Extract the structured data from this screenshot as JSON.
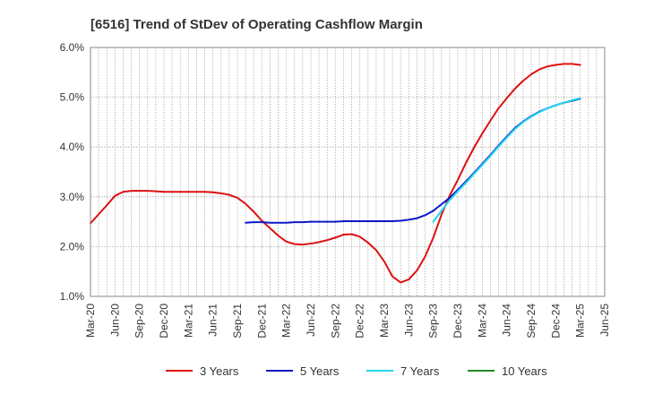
{
  "chart_data": {
    "type": "line",
    "title": "[6516]  Trend of StDev of Operating Cashflow Margin",
    "xlabel": "",
    "ylabel": "",
    "ylim": [
      1.0,
      6.0
    ],
    "y_ticks": [
      "1.0%",
      "2.0%",
      "3.0%",
      "4.0%",
      "5.0%",
      "6.0%"
    ],
    "x_ticks": [
      "Mar-20",
      "Jun-20",
      "Sep-20",
      "Dec-20",
      "Mar-21",
      "Jun-21",
      "Sep-21",
      "Dec-21",
      "Mar-22",
      "Jun-22",
      "Sep-22",
      "Dec-22",
      "Mar-23",
      "Jun-23",
      "Sep-23",
      "Dec-23",
      "Mar-24",
      "Jun-24",
      "Sep-24",
      "Dec-24",
      "Mar-25",
      "Jun-25"
    ],
    "x_start": "2020-03",
    "x_step_months": 1,
    "grid": true,
    "legend_position": "bottom",
    "series": [
      {
        "name": "3 Years",
        "color": "#dd1111",
        "values": [
          2.47,
          2.65,
          2.83,
          3.02,
          3.1,
          3.12,
          3.12,
          3.12,
          3.11,
          3.1,
          3.1,
          3.1,
          3.1,
          3.1,
          3.1,
          3.09,
          3.07,
          3.04,
          2.98,
          2.86,
          2.7,
          2.52,
          2.37,
          2.22,
          2.1,
          2.05,
          2.04,
          2.06,
          2.09,
          2.13,
          2.18,
          2.24,
          2.25,
          2.2,
          2.08,
          1.93,
          1.7,
          1.4,
          1.28,
          1.34,
          1.52,
          1.8,
          2.18,
          2.64,
          3.02,
          3.34,
          3.68,
          3.99,
          4.27,
          4.53,
          4.78,
          4.98,
          5.17,
          5.33,
          5.46,
          5.56,
          5.62,
          5.65,
          5.67,
          5.67,
          5.65
        ]
      },
      {
        "name": "5 Years",
        "color": "#0a18c8",
        "values": [
          null,
          null,
          null,
          null,
          null,
          null,
          null,
          null,
          null,
          null,
          null,
          null,
          null,
          null,
          null,
          null,
          null,
          null,
          null,
          2.48,
          2.49,
          2.49,
          2.48,
          2.48,
          2.48,
          2.49,
          2.49,
          2.5,
          2.5,
          2.5,
          2.5,
          2.51,
          2.51,
          2.51,
          2.51,
          2.51,
          2.51,
          2.51,
          2.52,
          2.54,
          2.57,
          2.63,
          2.72,
          2.85,
          2.98,
          3.14,
          3.31,
          3.48,
          3.66,
          3.84,
          4.03,
          4.21,
          4.38,
          4.51,
          4.62,
          4.71,
          4.78,
          4.84,
          4.89,
          4.93,
          4.97
        ]
      },
      {
        "name": "7 Years",
        "color": "#22d8ee",
        "values": [
          null,
          null,
          null,
          null,
          null,
          null,
          null,
          null,
          null,
          null,
          null,
          null,
          null,
          null,
          null,
          null,
          null,
          null,
          null,
          null,
          null,
          null,
          null,
          null,
          null,
          null,
          null,
          null,
          null,
          null,
          null,
          null,
          null,
          null,
          null,
          null,
          null,
          null,
          null,
          null,
          null,
          null,
          2.5,
          2.72,
          2.93,
          3.11,
          3.28,
          3.46,
          3.64,
          3.82,
          4.01,
          4.19,
          4.36,
          4.5,
          4.61,
          4.7,
          4.78,
          4.84,
          4.89,
          4.94,
          4.98
        ]
      },
      {
        "name": "10 Years",
        "color": "#228b22",
        "values": []
      }
    ]
  }
}
